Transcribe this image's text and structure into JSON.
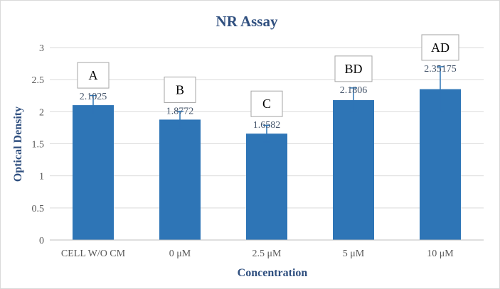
{
  "chart_data": {
    "type": "bar",
    "title": "NR Assay",
    "xlabel": "Concentration",
    "ylabel": "Optical Density",
    "ylim": [
      0,
      3
    ],
    "yticks": [
      "0",
      "0.5",
      "1",
      "1.5",
      "2",
      "2.5",
      "3"
    ],
    "grid": true,
    "bar_color": "#2e75b6",
    "categories": [
      "CELL  W/O CM",
      "0 μM",
      "2.5 μM",
      "5 μM",
      "10 μM"
    ],
    "values": [
      2.1025,
      1.8772,
      1.6582,
      2.1806,
      2.35175
    ],
    "value_labels": [
      "2.1025",
      "1.8772",
      "1.6582",
      "2.1806",
      "2.35175"
    ],
    "error": [
      0.15,
      0.13,
      0.13,
      0.19,
      0.35
    ],
    "significance_letters": [
      "A",
      "B",
      "C",
      "BD",
      "AD"
    ]
  }
}
